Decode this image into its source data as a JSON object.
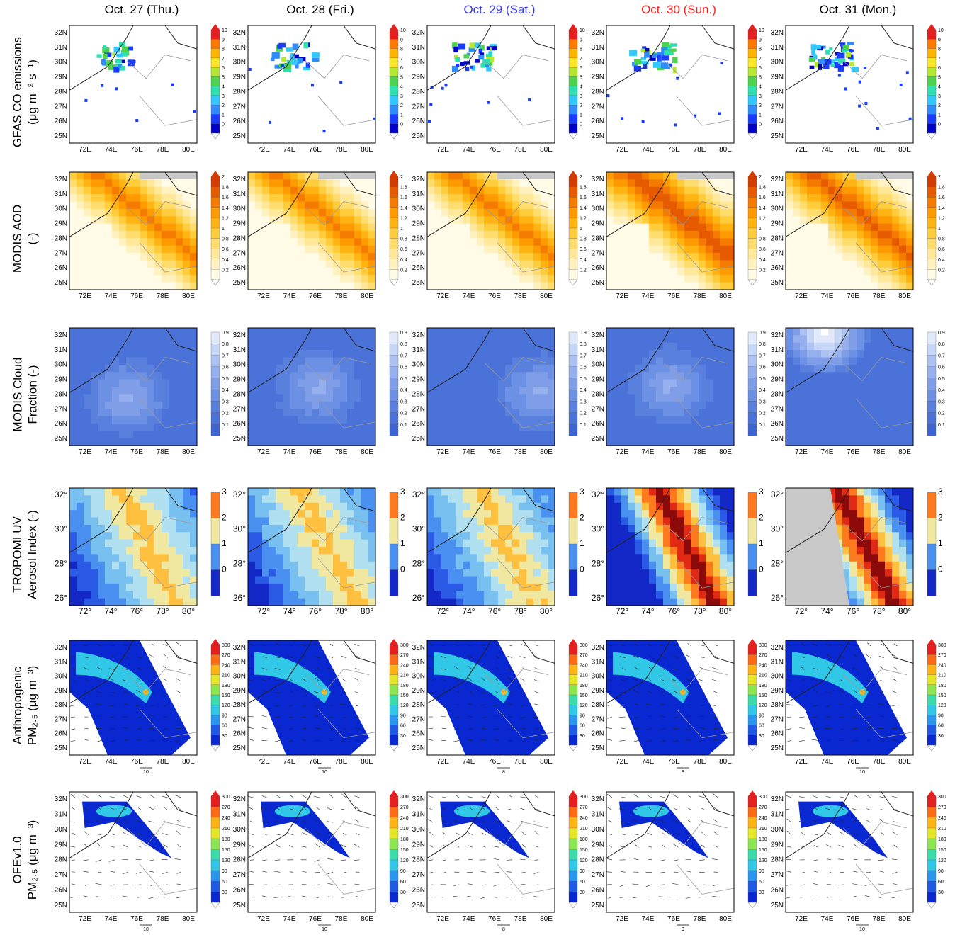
{
  "columns": [
    {
      "label": "Oct. 27 (Thu.)",
      "color": "#000000"
    },
    {
      "label": "Oct. 28 (Fri.)",
      "color": "#000000"
    },
    {
      "label": "Oct. 29 (Sat.)",
      "color": "#3b3bf5"
    },
    {
      "label": "Oct. 30 (Sun.)",
      "color": "#ff2020"
    },
    {
      "label": "Oct. 31 (Mon.)",
      "color": "#000000"
    }
  ],
  "rows": [
    {
      "label_lines": [
        "GFAS CO emissions",
        "(μg m⁻² s⁻¹)"
      ],
      "colorbar": [
        "10",
        "9",
        "8",
        "7",
        "6",
        "5",
        "4",
        "3",
        "2",
        "1",
        "0"
      ],
      "palette": "gfas"
    },
    {
      "label_lines": [
        "MODIS AOD",
        "(-)"
      ],
      "colorbar": [
        "2",
        "1.8",
        "1.6",
        "1.4",
        "1.2",
        "1",
        "0.8",
        "0.6",
        "0.4",
        "0.2"
      ],
      "palette": "aod"
    },
    {
      "label_lines": [
        "MODIS Cloud",
        "Fraction (-)"
      ],
      "colorbar": [
        "0.9",
        "0.8",
        "0.7",
        "0.6",
        "0.5",
        "0.4",
        "0.3",
        "0.2",
        "0.1"
      ],
      "palette": "cloud"
    },
    {
      "label_lines": [
        "TROPOMI UV",
        "Aerosol Index (-)"
      ],
      "colorbar": [
        "3",
        "2",
        "1",
        "0"
      ],
      "palette": "uvai"
    },
    {
      "label_lines": [
        "Anthropogenic",
        "PM₂.₅ (μg m⁻³)"
      ],
      "colorbar": [
        "300",
        "270",
        "240",
        "210",
        "180",
        "150",
        "120",
        "90",
        "60",
        "30"
      ],
      "palette": "pm"
    },
    {
      "label_lines": [
        "OFEv1.0",
        "PM₂.₅ (μg m⁻³)"
      ],
      "colorbar": [
        "300",
        "270",
        "240",
        "210",
        "180",
        "150",
        "120",
        "90",
        "60",
        "30"
      ],
      "palette": "pm"
    }
  ],
  "axes": {
    "lat_labels": [
      "32N",
      "31N",
      "30N",
      "29N",
      "28N",
      "27N",
      "26N",
      "25N"
    ],
    "lon_labels": [
      "72E",
      "74E",
      "76E",
      "78E",
      "80E"
    ],
    "tropomi_lat_labels": [
      "32°",
      "30°",
      "28°",
      "26°"
    ],
    "tropomi_lon_labels": [
      "72°",
      "74°",
      "76°",
      "78°",
      "80°"
    ]
  },
  "wind_refs": {
    "anthropogenic": [
      "10",
      "10",
      "8",
      "9",
      "10"
    ],
    "ofe": [
      "10",
      "10",
      "8",
      "9",
      "10"
    ]
  },
  "palette_colors": {
    "gfas": [
      "#0000c8",
      "#1a3cff",
      "#2f8cff",
      "#30c8ff",
      "#2ee0b0",
      "#4cd24c",
      "#b4e632",
      "#fae628",
      "#ffb400",
      "#ff7800",
      "#e61e1e"
    ],
    "aod": [
      "#fffbe6",
      "#fff2c0",
      "#ffe89a",
      "#ffdc6e",
      "#ffcc3c",
      "#ffb414",
      "#ff9a00",
      "#f57a00",
      "#e65a00",
      "#d23c00"
    ],
    "cloud": [
      "#3c64d2",
      "#4a72d8",
      "#5a80de",
      "#6c90e4",
      "#809ee8",
      "#96b0ee",
      "#aec2f2",
      "#c6d6f6",
      "#e0e8fa",
      "#ffffff"
    ],
    "uvai": [
      "#1428c8",
      "#2a5ae6",
      "#4a90f0",
      "#78c0f0",
      "#b0e0f0",
      "#f0e8a0",
      "#ffc040",
      "#ff7a1e",
      "#e02a14",
      "#8c0a0a"
    ],
    "pm": [
      "#0a28d2",
      "#1e5ae6",
      "#2a96f0",
      "#30c8e6",
      "#3cdcaa",
      "#8ce650",
      "#e6e628",
      "#ffb414",
      "#ff6a14",
      "#e61e1e"
    ]
  }
}
